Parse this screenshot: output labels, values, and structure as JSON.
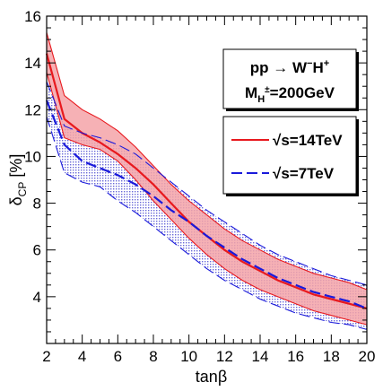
{
  "chart_data": {
    "type": "area",
    "xlabel": "tanβ",
    "ylabel_main": "δ",
    "ylabel_sub": "CP",
    "ylabel_unit": " [%]",
    "xlim": [
      2,
      20
    ],
    "ylim": [
      2,
      16
    ],
    "xticks": [
      2,
      4,
      6,
      8,
      10,
      12,
      14,
      16,
      18,
      20
    ],
    "yticks": [
      4,
      6,
      8,
      10,
      12,
      14,
      16
    ],
    "x": [
      2,
      3,
      4,
      5,
      6,
      7,
      8,
      9,
      10,
      11,
      12,
      13,
      14,
      15,
      16,
      17,
      18,
      19,
      20
    ],
    "process_box": {
      "line1_a": "pp → W",
      "line1_sup1": "−",
      "line1_b": "H",
      "line1_sup2": "+",
      "line2_a": "M",
      "line2_sub": "H",
      "line2_sup": "±",
      "line2_b": "=200GeV"
    },
    "series": [
      {
        "name": "√s=14TeV",
        "color": "#e8191e",
        "fill": "#f5a3a8",
        "style": "solid",
        "upper": [
          15.3,
          12.6,
          12.0,
          11.6,
          11.1,
          10.4,
          9.6,
          8.8,
          8.1,
          7.5,
          6.9,
          6.4,
          6.0,
          5.6,
          5.3,
          5.0,
          4.8,
          4.6,
          4.3
        ],
        "central": [
          14.4,
          11.6,
          11.0,
          10.6,
          10.1,
          9.5,
          8.8,
          8.0,
          7.2,
          6.6,
          6.0,
          5.5,
          5.1,
          4.7,
          4.4,
          4.1,
          3.9,
          3.7,
          3.5
        ],
        "lower": [
          13.6,
          10.8,
          10.5,
          10.3,
          9.8,
          9.0,
          8.1,
          7.3,
          6.5,
          5.8,
          5.2,
          4.7,
          4.3,
          4.0,
          3.7,
          3.4,
          3.2,
          3.0,
          2.8
        ]
      },
      {
        "name": "√s=7TeV",
        "color": "#1a1adb",
        "fill": "#b9b9ea",
        "style": "dashed",
        "upper": [
          13.2,
          11.3,
          11.0,
          10.8,
          10.5,
          10.1,
          9.5,
          8.9,
          8.3,
          7.7,
          7.2,
          6.7,
          6.2,
          5.8,
          5.5,
          5.2,
          4.9,
          4.7,
          4.5
        ],
        "central": [
          12.4,
          10.5,
          9.8,
          9.5,
          9.2,
          8.8,
          8.3,
          7.7,
          7.2,
          6.6,
          6.1,
          5.6,
          5.2,
          4.8,
          4.5,
          4.2,
          4.0,
          3.8,
          3.5
        ],
        "lower": [
          11.7,
          9.3,
          8.9,
          8.7,
          8.1,
          7.6,
          7.0,
          6.4,
          5.8,
          5.2,
          4.7,
          4.3,
          3.9,
          3.6,
          3.3,
          3.1,
          2.9,
          2.8,
          2.6
        ]
      }
    ]
  }
}
